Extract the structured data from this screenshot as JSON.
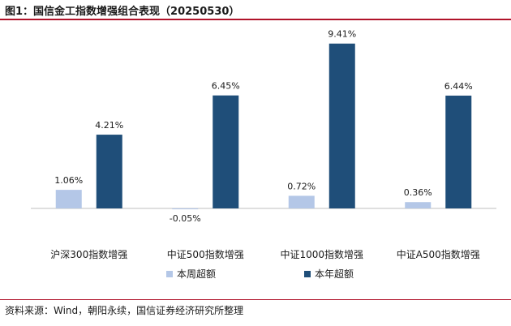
{
  "figure": {
    "title": "图1：国信金工指数增强组合表现（20250530）",
    "source": "资料来源：Wind，朝阳永续，国信证券经济研究所整理"
  },
  "chart_data": {
    "type": "bar",
    "categories": [
      "沪深300指数增强",
      "中证500指数增强",
      "中证1000指数增强",
      "中证A500指数增强"
    ],
    "series": [
      {
        "name": "本周超额",
        "values": [
          1.06,
          -0.05,
          0.72,
          0.36
        ],
        "labels": [
          "1.06%",
          "-0.05%",
          "0.72%",
          "0.36%"
        ],
        "color": "#b4c7e7"
      },
      {
        "name": "本年超额",
        "values": [
          4.21,
          6.45,
          9.41,
          6.44
        ],
        "labels": [
          "4.21%",
          "6.45%",
          "9.41%",
          "6.44%"
        ],
        "color": "#1f4e79"
      }
    ],
    "ylim": [
      -0.05,
      9.41
    ],
    "legend": "bottom",
    "grid": false
  }
}
